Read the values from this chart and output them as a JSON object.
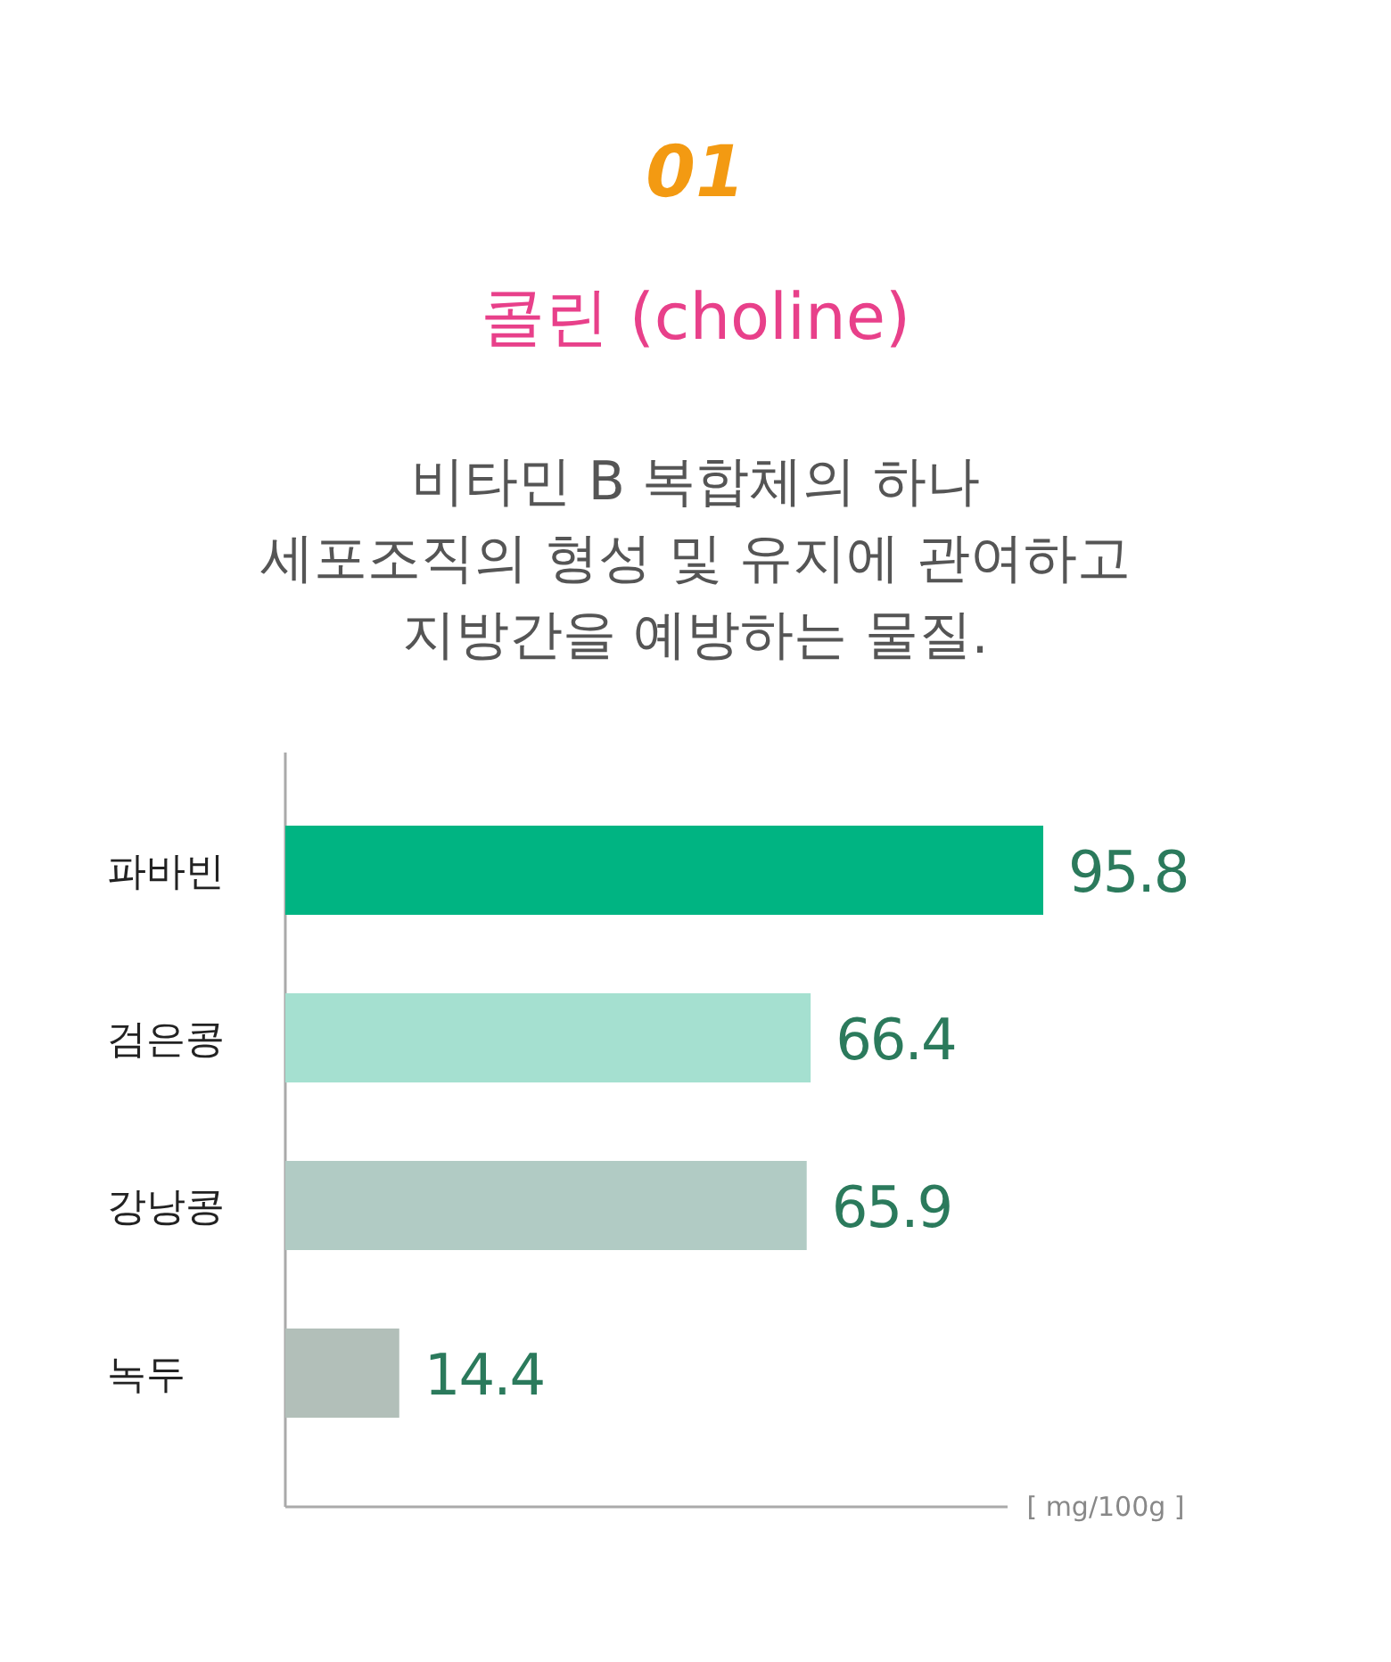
{
  "chart_data": {
    "type": "bar",
    "orientation": "horizontal",
    "title": "콜린 (choline)",
    "subtitle": "비타민 B 복합체의 하나\n세포조직의 형성 및 유지에 관여하고\n지방간을 예방하는 물질.",
    "xlabel": "[ mg/100g ]",
    "annotations": [
      "01"
    ],
    "categories": [
      "파바빈",
      "검은콩",
      "강낭콩",
      "녹두"
    ],
    "values": [
      95.8,
      66.4,
      65.9,
      14.4
    ],
    "colors": [
      "#00b482",
      "#a5e0d0",
      "#b1cbc4",
      "#b2bfb9"
    ],
    "data_labels": true
  }
}
